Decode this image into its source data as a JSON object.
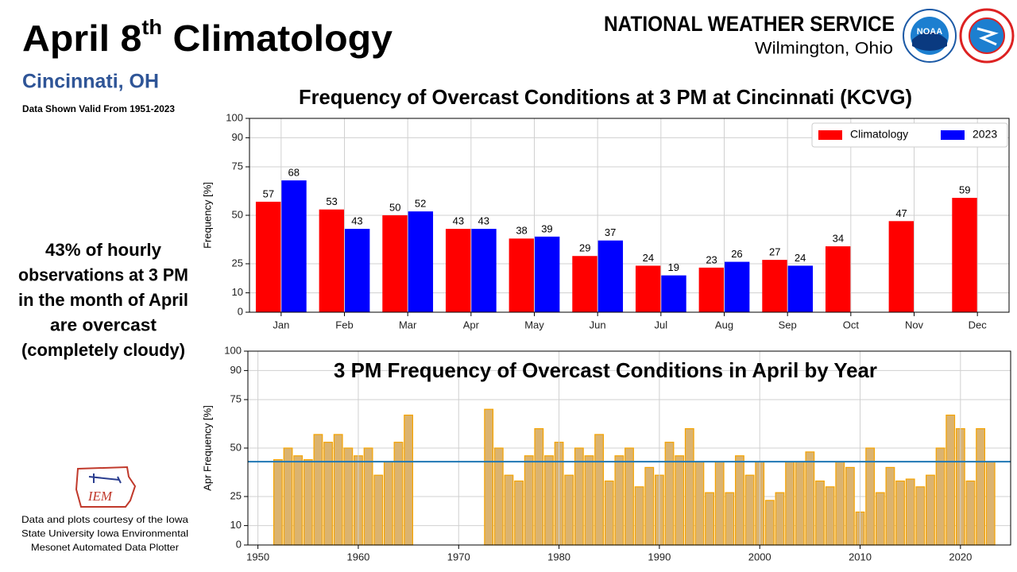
{
  "slide": {
    "title_parts": [
      "April 8",
      "th",
      " Climatology"
    ],
    "subtitle": "Cincinnati, OH",
    "validity": "Data Shown Valid From 1951-2023",
    "agency": "NATIONAL WEATHER SERVICE",
    "office": "Wilmington, Ohio",
    "note_lines": [
      "43% of hourly",
      "observations at 3 PM",
      "in the month of April",
      "are overcast",
      "(completely cloudy)"
    ],
    "credit_lines": [
      "Data and plots courtesy of the Iowa",
      "State University Iowa Environmental",
      "Mesonet Automated Data Plotter"
    ],
    "logo_texts": [
      "IEM",
      "NOAA"
    ]
  },
  "chart_data": [
    {
      "type": "bar",
      "title": "Frequency of Overcast Conditions at 3 PM at Cincinnati (KCVG)",
      "y_label": "Frequency [%]",
      "categories": [
        "Jan",
        "Feb",
        "Mar",
        "Apr",
        "May",
        "Jun",
        "Jul",
        "Aug",
        "Sep",
        "Oct",
        "Nov",
        "Dec"
      ],
      "series": [
        {
          "name": "Climatology",
          "color": "#ff0000",
          "values": [
            57,
            53,
            50,
            43,
            38,
            29,
            24,
            23,
            27,
            34,
            47,
            59
          ]
        },
        {
          "name": "2023",
          "color": "#0000ff",
          "values": [
            68,
            43,
            52,
            43,
            39,
            37,
            19,
            26,
            24,
            null,
            null,
            null
          ]
        }
      ],
      "ylim": [
        0,
        100
      ],
      "yticks": [
        0,
        10,
        25,
        50,
        75,
        90,
        100
      ],
      "grid": true,
      "legend": "upper right",
      "data_labels": true
    },
    {
      "type": "bar",
      "title": "3 PM Frequency of Overcast Conditions in April by Year",
      "y_label": "Apr Frequency [%]",
      "x": [
        1952,
        1953,
        1954,
        1955,
        1956,
        1957,
        1958,
        1959,
        1960,
        1961,
        1962,
        1963,
        1964,
        1965,
        1973,
        1974,
        1975,
        1976,
        1977,
        1978,
        1979,
        1980,
        1981,
        1982,
        1983,
        1984,
        1985,
        1986,
        1987,
        1988,
        1989,
        1990,
        1991,
        1992,
        1993,
        1994,
        1995,
        1996,
        1997,
        1998,
        1999,
        2000,
        2001,
        2002,
        2003,
        2004,
        2005,
        2006,
        2007,
        2008,
        2009,
        2010,
        2011,
        2012,
        2013,
        2014,
        2015,
        2016,
        2017,
        2018,
        2019,
        2020,
        2021,
        2022,
        2023
      ],
      "values": [
        44,
        50,
        46,
        44,
        57,
        53,
        57,
        50,
        46,
        50,
        36,
        43,
        53,
        67,
        70,
        50,
        36,
        33,
        46,
        60,
        46,
        53,
        36,
        50,
        46,
        57,
        33,
        46,
        50,
        30,
        40,
        36,
        53,
        46,
        60,
        43,
        27,
        43,
        27,
        46,
        36,
        43,
        23,
        27,
        43,
        43,
        48,
        33,
        30,
        43,
        40,
        17,
        50,
        27,
        40,
        33,
        34,
        30,
        36,
        50,
        67,
        60,
        33,
        60,
        43
      ],
      "color": "#dbb36f",
      "edge_color": "#f5a300",
      "reference_line": {
        "value": 43,
        "color": "#1f77b4"
      },
      "xlim": [
        1949,
        2025
      ],
      "xticks": [
        1950,
        1960,
        1970,
        1980,
        1990,
        2000,
        2010,
        2020
      ],
      "ylim": [
        0,
        100
      ],
      "yticks": [
        0,
        10,
        25,
        50,
        75,
        90,
        100
      ],
      "grid": true
    }
  ]
}
